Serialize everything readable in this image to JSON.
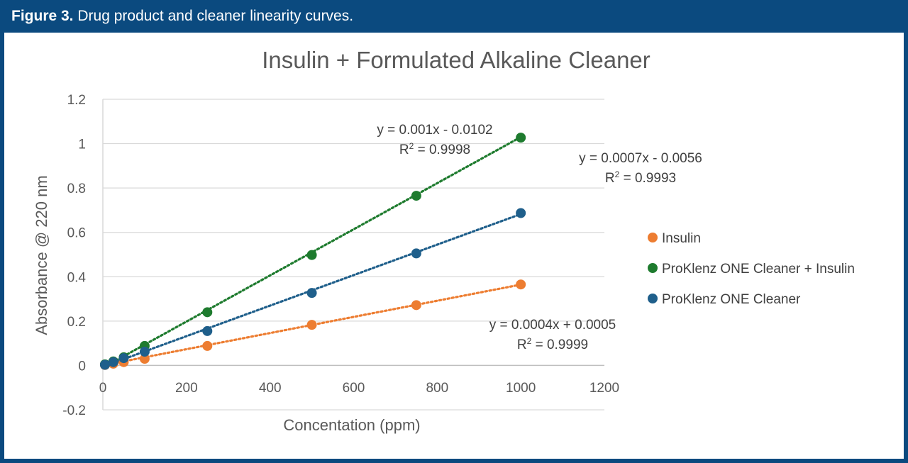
{
  "figure": {
    "label": "Figure 3.",
    "caption": "Drug product and cleaner linearity curves."
  },
  "colors": {
    "header_bg": "#0b4a7f",
    "insulin": "#ed7d31",
    "proklenz_insulin": "#1e7b2e",
    "proklenz": "#1f5f8b",
    "grid": "#d9d9d9"
  },
  "chart_data": {
    "type": "scatter",
    "title": "Insulin + Formulated Alkaline Cleaner",
    "xlabel": "Concentation (ppm)",
    "ylabel": "Absorbance @ 220 nm",
    "xlim": [
      0,
      1200
    ],
    "ylim": [
      -0.2,
      1.2
    ],
    "x_ticks": [
      "0",
      "200",
      "400",
      "600",
      "800",
      "1000",
      "1200"
    ],
    "y_ticks": [
      "-0.2",
      "0",
      "0.2",
      "0.4",
      "0.6",
      "0.8",
      "1",
      "1.2"
    ],
    "x_tick_values": [
      0,
      200,
      400,
      600,
      800,
      1000,
      1200
    ],
    "y_tick_values": [
      -0.2,
      0,
      0.2,
      0.4,
      0.6,
      0.8,
      1,
      1.2
    ],
    "grid": true,
    "legend_position": "right",
    "series": [
      {
        "name": "Insulin",
        "color": "#ed7d31",
        "x": [
          5,
          25,
          50,
          100,
          250,
          500,
          750,
          1000
        ],
        "y": [
          0.002,
          0.008,
          0.015,
          0.03,
          0.088,
          0.183,
          0.272,
          0.365
        ],
        "trendline": {
          "slope": 0.000364,
          "intercept": 0.0005
        },
        "equation": "y = 0.0004x + 0.0005",
        "r2_label": "R",
        "r2_value": " = 0.9999"
      },
      {
        "name": "ProKlenz ONE Cleaner + Insulin",
        "color": "#1e7b2e",
        "x": [
          5,
          25,
          50,
          100,
          250,
          500,
          750,
          1000
        ],
        "y": [
          0.005,
          0.018,
          0.037,
          0.088,
          0.24,
          0.498,
          0.765,
          1.027
        ],
        "trendline": {
          "slope": 0.00104,
          "intercept": -0.0102
        },
        "equation": "y = 0.001x - 0.0102",
        "r2_label": "R",
        "r2_value": " = 0.9998"
      },
      {
        "name": "ProKlenz ONE Cleaner",
        "color": "#1f5f8b",
        "x": [
          5,
          25,
          50,
          100,
          250,
          500,
          750,
          1000
        ],
        "y": [
          0.003,
          0.015,
          0.033,
          0.062,
          0.155,
          0.327,
          0.505,
          0.687
        ],
        "trendline": {
          "slope": 0.000688,
          "intercept": -0.0056
        },
        "equation": "y = 0.0007x - 0.0056",
        "r2_label": "R",
        "r2_value": " = 0.9993"
      }
    ]
  }
}
